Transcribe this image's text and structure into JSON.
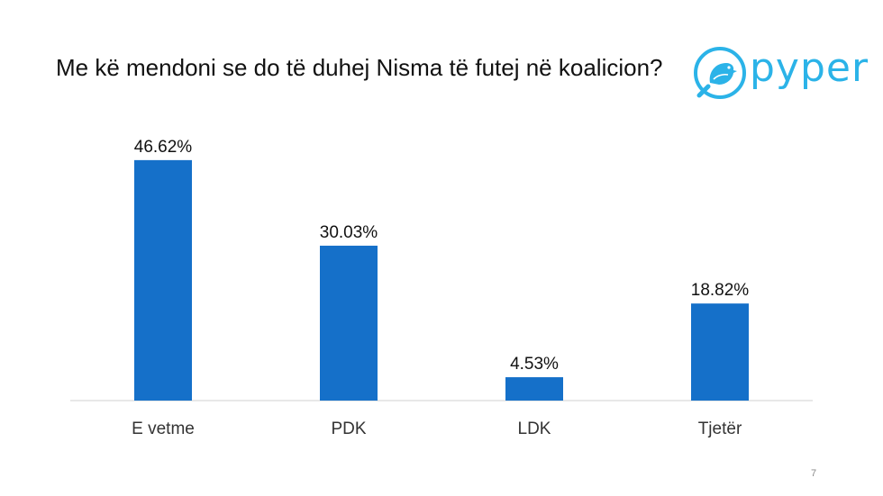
{
  "slide": {
    "title": "Me kë mendoni se do të duhej Nisma të futej në koalicion?",
    "page_number": "7"
  },
  "logo": {
    "text": "pyper",
    "icon": "bird-icon",
    "color": "#2bb3e8"
  },
  "chart_data": {
    "type": "bar",
    "title": "Me kë mendoni se do të duhej Nisma të futej në koalicion?",
    "categories": [
      "E vetme",
      "PDK",
      "LDK",
      "Tjetër"
    ],
    "values": [
      46.62,
      30.03,
      4.53,
      18.82
    ],
    "value_labels": [
      "46.62%",
      "30.03%",
      "4.53%",
      "18.82%"
    ],
    "xlabel": "",
    "ylabel": "",
    "ylim": [
      0,
      50
    ],
    "bar_color": "#1570c9",
    "grid": false,
    "legend": "none"
  }
}
